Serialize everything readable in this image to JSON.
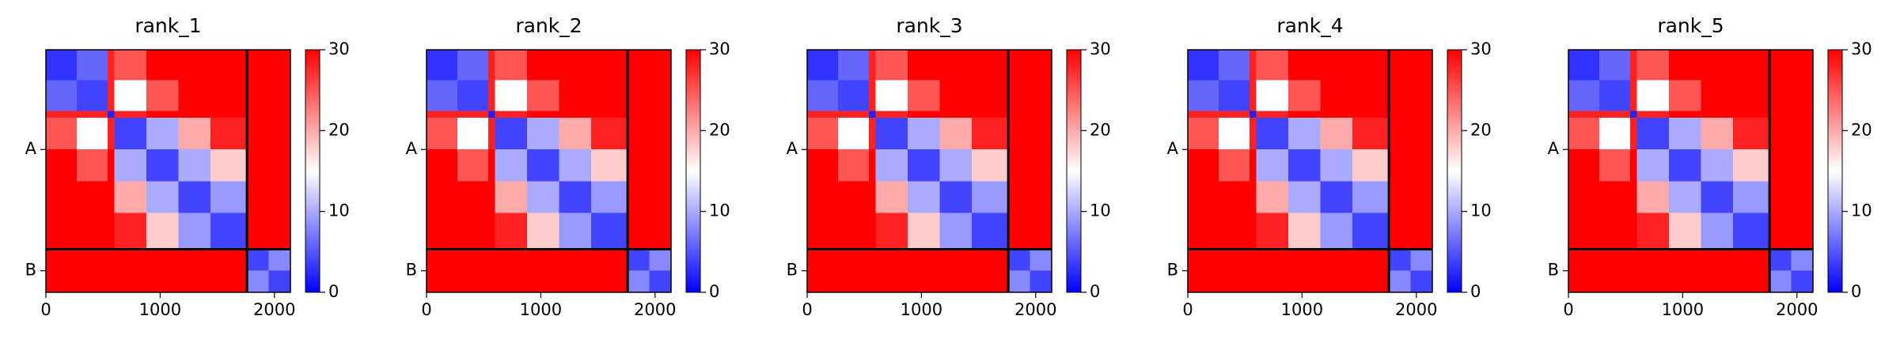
{
  "chart_data": [
    {
      "type": "heatmap",
      "title": "rank_1",
      "bins": [
        0,
        270,
        540,
        600,
        880,
        1160,
        1440,
        1760,
        1950,
        2140
      ],
      "values": [
        [
          3,
          6,
          28,
          25,
          30,
          30,
          30,
          30,
          30
        ],
        [
          6,
          4,
          28,
          15,
          25,
          30,
          30,
          30,
          30
        ],
        [
          28,
          28,
          2,
          28,
          30,
          30,
          30,
          30,
          30
        ],
        [
          25,
          15,
          28,
          4,
          10,
          20,
          28,
          30,
          30
        ],
        [
          30,
          25,
          30,
          10,
          4,
          10,
          18,
          30,
          30
        ],
        [
          30,
          30,
          30,
          20,
          10,
          4,
          9,
          30,
          30
        ],
        [
          30,
          30,
          30,
          28,
          18,
          9,
          4,
          30,
          30
        ],
        [
          30,
          30,
          30,
          30,
          30,
          30,
          30,
          4,
          8
        ],
        [
          30,
          30,
          30,
          30,
          30,
          30,
          30,
          8,
          4
        ]
      ],
      "xlim": [
        0,
        2140
      ],
      "xticks": [
        0,
        1000,
        2000
      ],
      "ylim": [
        2140,
        0
      ],
      "yticks": [
        {
          "value": 880,
          "label": "A"
        },
        {
          "value": 1950,
          "label": "B"
        }
      ],
      "chain_breaks": [
        1760
      ],
      "colors": [
        "#0000ff",
        "#ffffff",
        "#ff0000"
      ],
      "clim": [
        0,
        30
      ],
      "cticks": [
        0,
        10,
        20,
        30
      ]
    },
    {
      "type": "heatmap",
      "title": "rank_2",
      "bins": [
        0,
        270,
        540,
        600,
        880,
        1160,
        1440,
        1760,
        1950,
        2140
      ],
      "values": [
        [
          3,
          6,
          28,
          25,
          30,
          30,
          30,
          30,
          30
        ],
        [
          6,
          4,
          28,
          15,
          25,
          30,
          30,
          30,
          30
        ],
        [
          28,
          28,
          2,
          28,
          30,
          30,
          30,
          30,
          30
        ],
        [
          25,
          15,
          28,
          4,
          10,
          20,
          28,
          30,
          30
        ],
        [
          30,
          25,
          30,
          10,
          4,
          10,
          18,
          30,
          30
        ],
        [
          30,
          30,
          30,
          20,
          10,
          4,
          9,
          30,
          30
        ],
        [
          30,
          30,
          30,
          28,
          18,
          9,
          4,
          30,
          30
        ],
        [
          30,
          30,
          30,
          30,
          30,
          30,
          30,
          4,
          8
        ],
        [
          30,
          30,
          30,
          30,
          30,
          30,
          30,
          8,
          4
        ]
      ],
      "xlim": [
        0,
        2140
      ],
      "xticks": [
        0,
        1000,
        2000
      ],
      "ylim": [
        2140,
        0
      ],
      "yticks": [
        {
          "value": 880,
          "label": "A"
        },
        {
          "value": 1950,
          "label": "B"
        }
      ],
      "chain_breaks": [
        1760
      ],
      "colors": [
        "#0000ff",
        "#ffffff",
        "#ff0000"
      ],
      "clim": [
        0,
        30
      ],
      "cticks": [
        0,
        10,
        20,
        30
      ]
    },
    {
      "type": "heatmap",
      "title": "rank_3",
      "bins": [
        0,
        270,
        540,
        600,
        880,
        1160,
        1440,
        1760,
        1950,
        2140
      ],
      "values": [
        [
          3,
          6,
          28,
          25,
          30,
          30,
          30,
          30,
          30
        ],
        [
          6,
          4,
          28,
          15,
          25,
          30,
          30,
          30,
          30
        ],
        [
          28,
          28,
          2,
          28,
          30,
          30,
          30,
          30,
          30
        ],
        [
          25,
          15,
          28,
          4,
          10,
          20,
          28,
          30,
          30
        ],
        [
          30,
          25,
          30,
          10,
          4,
          10,
          18,
          30,
          30
        ],
        [
          30,
          30,
          30,
          20,
          10,
          4,
          9,
          30,
          30
        ],
        [
          30,
          30,
          30,
          28,
          18,
          9,
          4,
          30,
          30
        ],
        [
          30,
          30,
          30,
          30,
          30,
          30,
          30,
          4,
          8
        ],
        [
          30,
          30,
          30,
          30,
          30,
          30,
          30,
          8,
          4
        ]
      ],
      "xlim": [
        0,
        2140
      ],
      "xticks": [
        0,
        1000,
        2000
      ],
      "ylim": [
        2140,
        0
      ],
      "yticks": [
        {
          "value": 880,
          "label": "A"
        },
        {
          "value": 1950,
          "label": "B"
        }
      ],
      "chain_breaks": [
        1760
      ],
      "colors": [
        "#0000ff",
        "#ffffff",
        "#ff0000"
      ],
      "clim": [
        0,
        30
      ],
      "cticks": [
        0,
        10,
        20,
        30
      ]
    },
    {
      "type": "heatmap",
      "title": "rank_4",
      "bins": [
        0,
        270,
        540,
        600,
        880,
        1160,
        1440,
        1760,
        1950,
        2140
      ],
      "values": [
        [
          3,
          6,
          28,
          25,
          30,
          30,
          30,
          30,
          30
        ],
        [
          6,
          4,
          28,
          15,
          25,
          30,
          30,
          30,
          30
        ],
        [
          28,
          28,
          2,
          28,
          30,
          30,
          30,
          30,
          30
        ],
        [
          25,
          15,
          28,
          4,
          10,
          20,
          28,
          30,
          30
        ],
        [
          30,
          25,
          30,
          10,
          4,
          10,
          18,
          30,
          30
        ],
        [
          30,
          30,
          30,
          20,
          10,
          4,
          9,
          30,
          30
        ],
        [
          30,
          30,
          30,
          28,
          18,
          9,
          4,
          30,
          30
        ],
        [
          30,
          30,
          30,
          30,
          30,
          30,
          30,
          4,
          8
        ],
        [
          30,
          30,
          30,
          30,
          30,
          30,
          30,
          8,
          4
        ]
      ],
      "xlim": [
        0,
        2140
      ],
      "xticks": [
        0,
        1000,
        2000
      ],
      "ylim": [
        2140,
        0
      ],
      "yticks": [
        {
          "value": 880,
          "label": "A"
        },
        {
          "value": 1950,
          "label": "B"
        }
      ],
      "chain_breaks": [
        1760
      ],
      "colors": [
        "#0000ff",
        "#ffffff",
        "#ff0000"
      ],
      "clim": [
        0,
        30
      ],
      "cticks": [
        0,
        10,
        20,
        30
      ]
    },
    {
      "type": "heatmap",
      "title": "rank_5",
      "bins": [
        0,
        270,
        540,
        600,
        880,
        1160,
        1440,
        1760,
        1950,
        2140
      ],
      "values": [
        [
          3,
          6,
          28,
          25,
          30,
          30,
          30,
          30,
          30
        ],
        [
          6,
          4,
          28,
          15,
          25,
          30,
          30,
          30,
          30
        ],
        [
          28,
          28,
          2,
          28,
          30,
          30,
          30,
          30,
          30
        ],
        [
          25,
          15,
          28,
          4,
          10,
          20,
          28,
          30,
          30
        ],
        [
          30,
          25,
          30,
          10,
          4,
          10,
          18,
          30,
          30
        ],
        [
          30,
          30,
          30,
          20,
          10,
          4,
          9,
          30,
          30
        ],
        [
          30,
          30,
          30,
          28,
          18,
          9,
          4,
          30,
          30
        ],
        [
          30,
          30,
          30,
          30,
          30,
          30,
          30,
          4,
          8
        ],
        [
          30,
          30,
          30,
          30,
          30,
          30,
          30,
          8,
          4
        ]
      ],
      "xlim": [
        0,
        2140
      ],
      "xticks": [
        0,
        1000,
        2000
      ],
      "ylim": [
        2140,
        0
      ],
      "yticks": [
        {
          "value": 880,
          "label": "A"
        },
        {
          "value": 1950,
          "label": "B"
        }
      ],
      "chain_breaks": [
        1760
      ],
      "colors": [
        "#0000ff",
        "#ffffff",
        "#ff0000"
      ],
      "clim": [
        0,
        30
      ],
      "cticks": [
        0,
        10,
        20,
        30
      ]
    }
  ]
}
